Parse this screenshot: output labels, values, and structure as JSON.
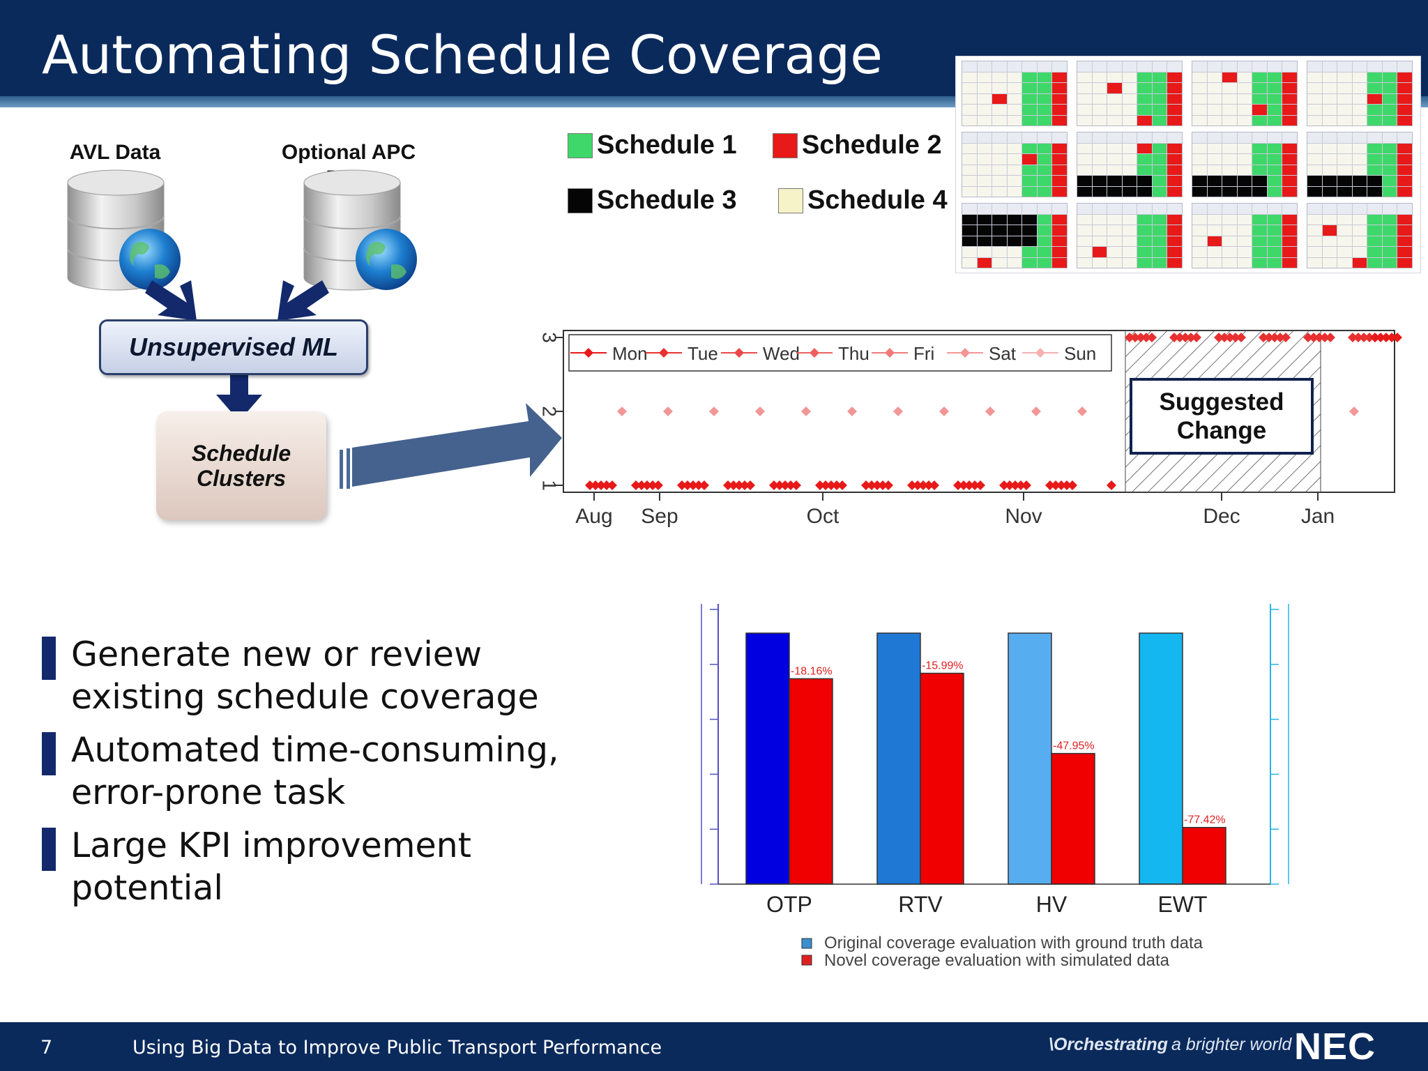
{
  "slide": {
    "title": "Automating Schedule Coverage",
    "page_number": "7",
    "footer_text": "Using Big Data to Improve Public Transport Performance",
    "tagline_prefix": "\\Orchestrating",
    "tagline_rest": "a brighter world",
    "logo": "NEC"
  },
  "diagram": {
    "source_1": "AVL Data",
    "source_2": "Optional APC Data",
    "ml_label": "Unsupervised ML",
    "cluster_label": "Schedule Clusters"
  },
  "schedule_legend": [
    {
      "label": "Schedule 1",
      "color": "#3ed86a"
    },
    {
      "label": "Schedule 2",
      "color": "#e81919"
    },
    {
      "label": "Schedule 3",
      "color": "#050505"
    },
    {
      "label": "Schedule 4",
      "color": "#f6f3c8"
    }
  ],
  "bullets": [
    "Generate new or review existing schedule coverage",
    "Automated time-consuming, error-prone task",
    "Large KPI improvement potential"
  ],
  "cluster_plot": {
    "y_ticks": [
      "1",
      "2",
      "3"
    ],
    "x_labels": [
      "Aug",
      "Sep",
      "Oct",
      "Nov",
      "Dec",
      "Jan"
    ],
    "legend": [
      "Mon",
      "Tue",
      "Wed",
      "Thu",
      "Fri",
      "Sat",
      "Sun"
    ],
    "suggested_change": "Suggested Change"
  },
  "chart_data": {
    "type": "bar",
    "categories": [
      "OTP",
      "RTV",
      "HV",
      "EWT"
    ],
    "series": [
      {
        "name": "Original coverage evaluation with ground truth data",
        "values": [
          100,
          100,
          100,
          100
        ],
        "colors": [
          "#0000e0",
          "#1f78d4",
          "#56aef0",
          "#14b7f0"
        ]
      },
      {
        "name": "Novel coverage evaluation with simulated data",
        "values": [
          81.84,
          84.01,
          52.05,
          22.58
        ],
        "color": "#f00000"
      }
    ],
    "data_labels": [
      "-18.16%",
      "-15.99%",
      "-47.95%",
      "-77.42%"
    ],
    "units": "relative to original (%)",
    "ylim": [
      0,
      100
    ]
  }
}
